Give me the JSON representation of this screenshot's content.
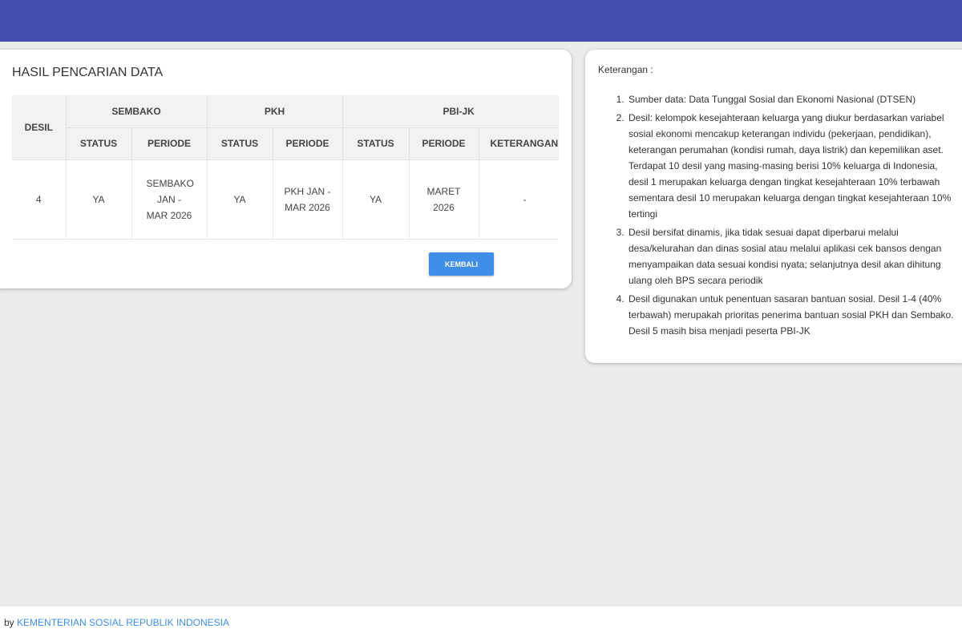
{
  "colors": {
    "header": "#434eae",
    "button": "#3f8fe8",
    "link": "#3f8fe8"
  },
  "result": {
    "title": "HASIL PENCARIAN DATA",
    "groups": [
      "SEMBAKO",
      "PKH",
      "PBI-JK"
    ],
    "desil_header": "DESIL",
    "subheaders": [
      "STATUS",
      "PERIODE",
      "STATUS",
      "PERIODE",
      "STATUS",
      "PERIODE",
      "KETERANGAN"
    ],
    "rows": [
      [
        "4",
        "YA",
        "SEMBAKO JAN - MAR 2026",
        "YA",
        "PKH JAN - MAR 2026",
        "YA",
        "MARET 2026",
        "-"
      ]
    ],
    "back_button": "KEMBALI"
  },
  "notes": {
    "title": "Keterangan :",
    "items": [
      "Sumber data: Data Tunggal Sosial dan Ekonomi Nasional (DTSEN)",
      "Desil: kelompok kesejahteraan keluarga yang diukur berdasarkan variabel sosial ekonomi mencakup keterangan individu (pekerjaan, pendidikan), keterangan perumahan (kondisi rumah, daya listrik) dan kepemilikan aset. Terdapat 10 desil yang masing-masing berisi 10% keluarga di Indonesia, desil 1 merupakan keluarga dengan tingkat kesejahteraan 10% terbawah sementara desil 10 merupakan keluarga dengan tingkat kesejahteraan 10% tertingi",
      "Desil bersifat dinamis, jika tidak sesuai dapat diperbarui melalui desa/kelurahan dan dinas sosial atau melalui aplikasi cek bansos dengan menyampaikan data sesuai kondisi nyata; selanjutnya desil akan dihitung ulang oleh BPS secara periodik",
      "Desil digunakan untuk penentuan sasaran bantuan sosial. Desil 1-4 (40% terbawah) merupakah prioritas penerima bantuan sosial PKH dan Sembako. Desil 5 masih bisa menjadi peserta PBI-JK"
    ]
  },
  "footer": {
    "prefix": "by ",
    "link": "KEMENTERIAN SOSIAL REPUBLIK INDONESIA"
  }
}
